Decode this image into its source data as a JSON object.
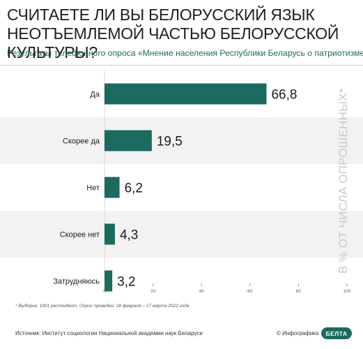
{
  "header": {
    "title": "СЧИТАЕТЕ ЛИ ВЫ БЕЛОРУССКИЙ ЯЗЫК НЕОТЪЕМЛЕМОЙ ЧАСТЬЮ БЕЛОРУССКОЙ КУЛЬТУРЫ?",
    "subtitle": "Результаты телефонного опроса «Мнение населения Республики Беларусь о патриотизме»"
  },
  "side_label": "В % ОТ ЧИСЛА ОПРОШЕННЫХ*",
  "footnote": "* Выборка: 1001 респондент. Опрос проведен: 28 февраля – 17 марта 2022 года",
  "source": "Источник: Институт социологии Национальной академии наук Беларуси",
  "credit": "© Инфографика",
  "logo_text": "БЕЛТА",
  "colors": {
    "bar": "#1b6b60",
    "band": "#f2f2f2",
    "subtitle": "#1b6b60"
  },
  "chart_data": {
    "type": "bar",
    "orientation": "horizontal",
    "categories": [
      "Да",
      "Скорее да",
      "Нет",
      "Скорее нет",
      "Затрудняюсь"
    ],
    "values": [
      66.8,
      19.5,
      6.2,
      4.3,
      3.2
    ],
    "data_labels": [
      "66,8",
      "19,5",
      "6,2",
      "4,3",
      "3,2"
    ],
    "xlim": [
      0,
      100
    ],
    "xticks": [
      0,
      20,
      40,
      60,
      80,
      100
    ],
    "xtick_labels": [
      "0",
      "20",
      "40",
      "60",
      "80",
      "100"
    ],
    "alternating_bands": true,
    "grid": false
  }
}
